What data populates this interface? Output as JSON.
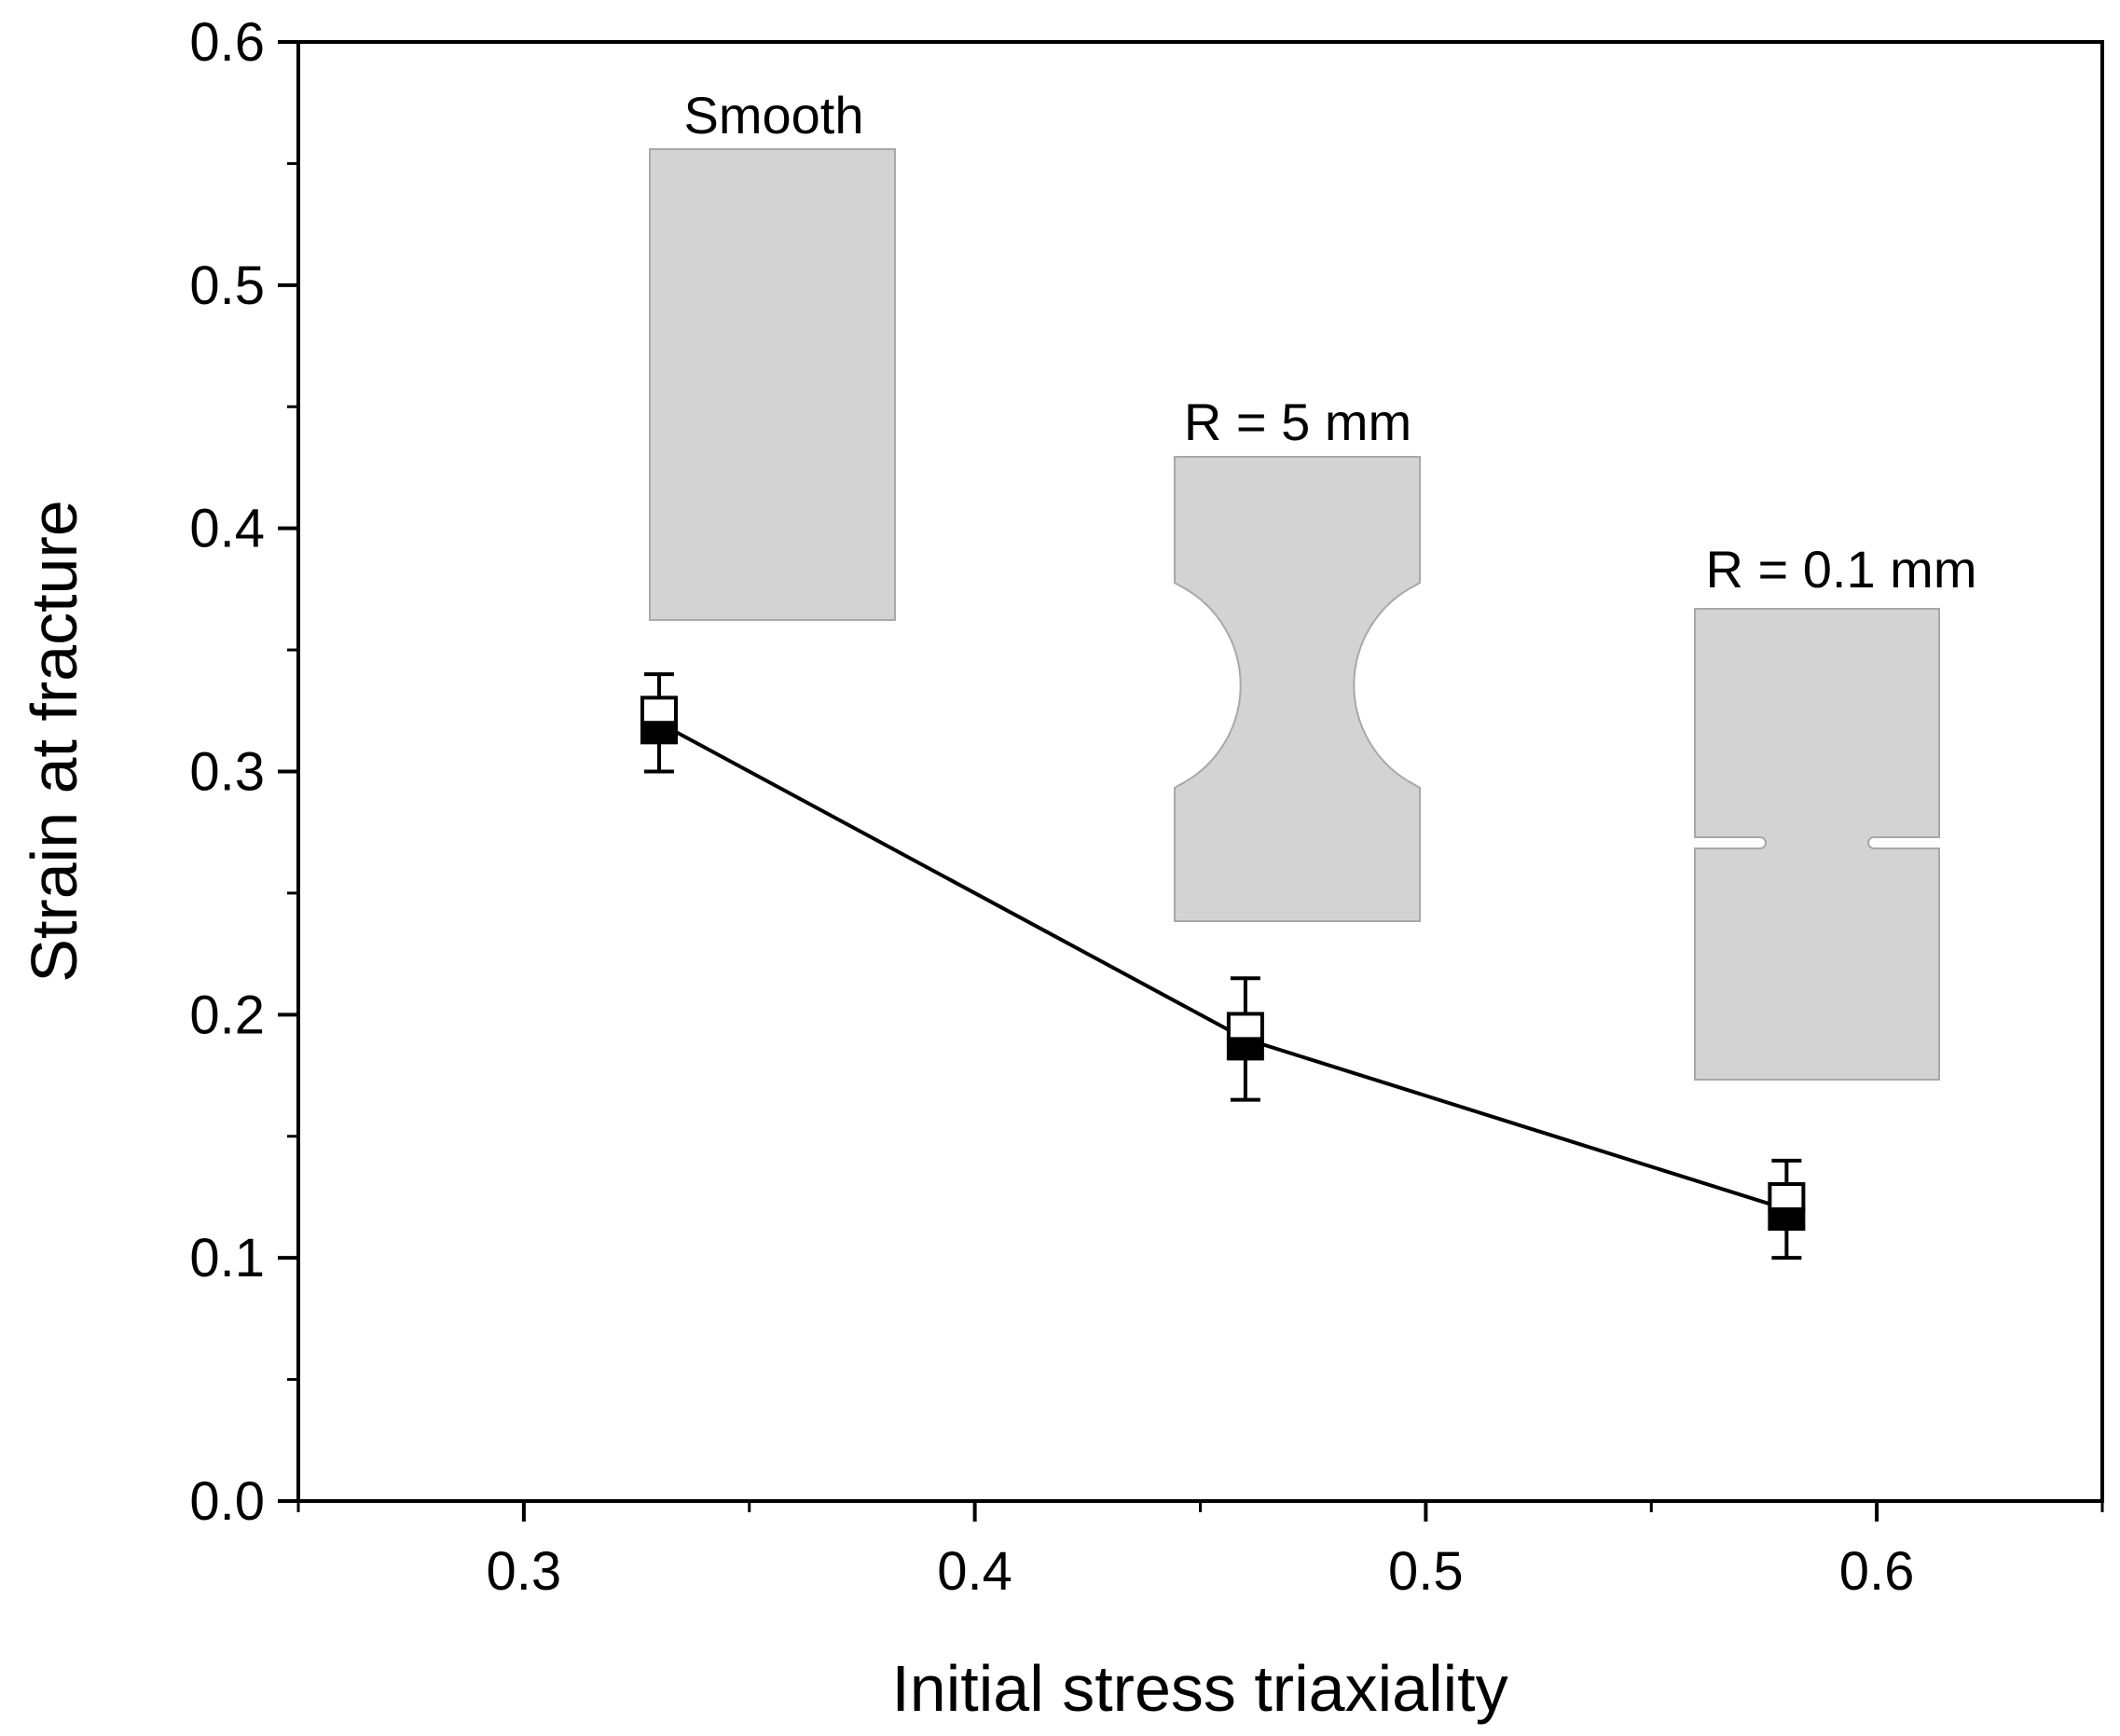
{
  "chart_data": {
    "type": "scatter",
    "title": "",
    "xlabel": "Initial stress triaxiality",
    "ylabel": "Strain at fracture",
    "xlim": [
      0.25,
      0.65
    ],
    "ylim": [
      0.0,
      0.6
    ],
    "x_ticks": [
      "0.3",
      "0.4",
      "0.5",
      "0.6"
    ],
    "x_tick_values": [
      0.3,
      0.4,
      0.5,
      0.6
    ],
    "y_ticks": [
      "0.0",
      "0.1",
      "0.2",
      "0.3",
      "0.4",
      "0.5",
      "0.6"
    ],
    "y_tick_values": [
      0.0,
      0.1,
      0.2,
      0.3,
      0.4,
      0.5,
      0.6
    ],
    "grid": false,
    "series": [
      {
        "name": "Strain at fracture",
        "marker": "half-filled-square",
        "line": true,
        "points": [
          {
            "x": 0.33,
            "y": 0.32,
            "err_low": 0.3,
            "err_high": 0.34
          },
          {
            "x": 0.46,
            "y": 0.19,
            "err_low": 0.165,
            "err_high": 0.215
          },
          {
            "x": 0.58,
            "y": 0.12,
            "err_low": 0.1,
            "err_high": 0.14
          }
        ]
      }
    ],
    "annotations": [
      {
        "text": "Smooth",
        "shape": "smooth"
      },
      {
        "text": "R = 5 mm",
        "shape": "notch-5mm"
      },
      {
        "text": "R = 0.1 mm",
        "shape": "notch-0.1mm"
      }
    ]
  },
  "colors": {
    "specimen_fill": "#d3d3d3",
    "specimen_edge": "#a8a8a8",
    "line": "#000000",
    "marker": "#000000"
  }
}
